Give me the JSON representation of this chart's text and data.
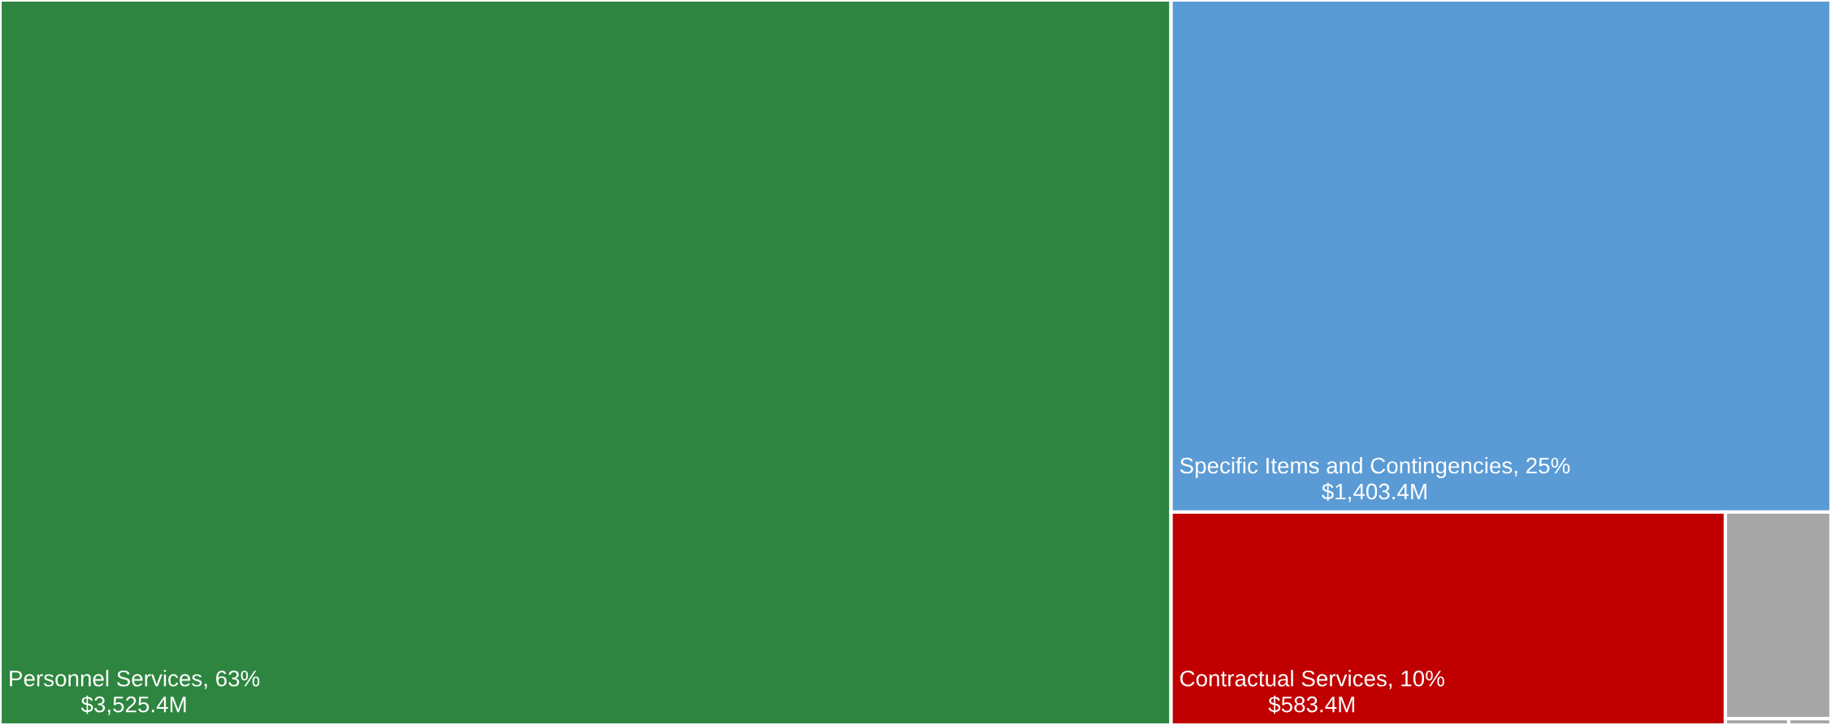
{
  "chart_data": {
    "type": "other",
    "categories": [
      "Personnel Services, 63%",
      "Specific Items and Contingencies, 25%",
      "Contractual Services, 10%",
      null,
      null,
      null
    ],
    "values": [
      3525.4,
      1403.4,
      583.4,
      null,
      null,
      null
    ],
    "value_labels": [
      "$3,525.4M",
      "$1,403.4M",
      "$583.4M",
      null,
      null,
      null
    ],
    "colors": [
      "#2e8540",
      "#5b9bd5",
      "#c00000",
      "#a6a6a6",
      "#a6a6a6",
      "#a6a6a6"
    ]
  }
}
